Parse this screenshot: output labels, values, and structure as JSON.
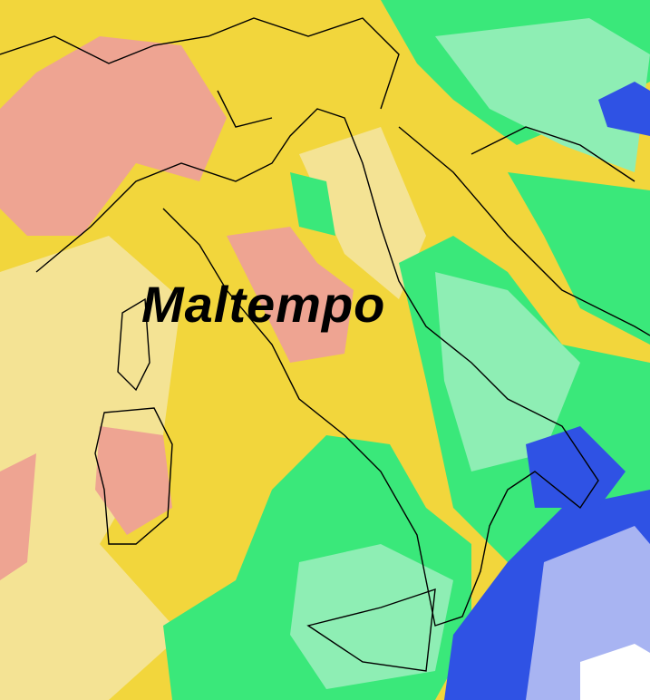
{
  "map": {
    "title": "Maltempo",
    "colors": {
      "yellow": "#f2d63c",
      "pale_yellow": "#f4e394",
      "salmon": "#eea492",
      "green": "#3ae87a",
      "light_green": "#8eeeb4",
      "blue": "#2f52e4",
      "light_blue": "#a8b4f2",
      "white": "#ffffff",
      "borders": "#000000"
    }
  }
}
